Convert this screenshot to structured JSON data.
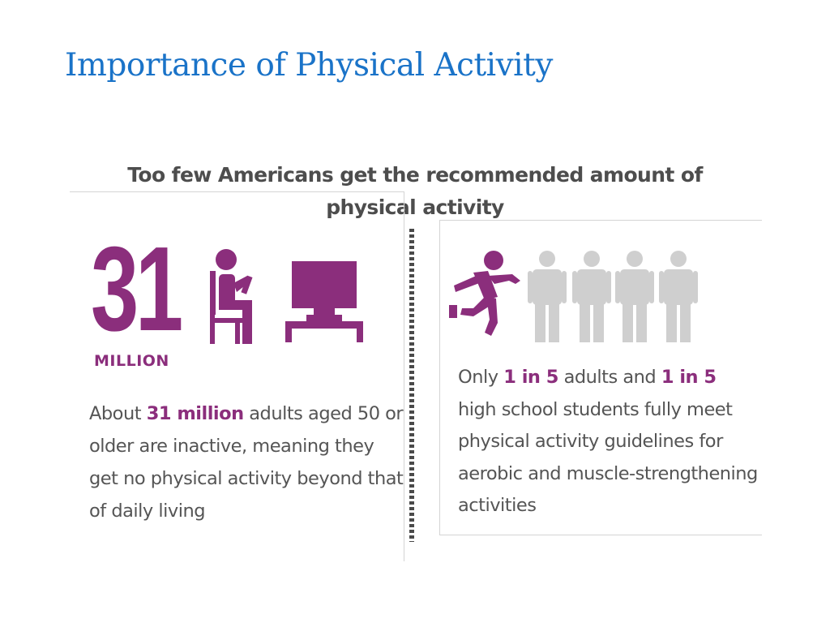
{
  "slide": {
    "title": "Importance of Physical Activity"
  },
  "panel": {
    "heading": "Too few Americans get the recommended amount of physical activity"
  },
  "left_stat": {
    "number": "31",
    "unit": "MILLION",
    "desc_before": "About ",
    "desc_highlight": "31 million",
    "desc_after": " adults aged 50 or older are inactive, meaning they get no physical activity beyond that of daily living"
  },
  "right_stat": {
    "desc_before": "Only ",
    "highlight_1": "1 in 5",
    "desc_middle": " adults and ",
    "highlight_2": "1 in 5",
    "desc_after": " high school students fully meet physical activity guidelines for aerobic and muscle-strengthening activities"
  },
  "icons": {
    "seated_person": "seated-person-icon",
    "television": "television-icon",
    "runner": "running-person-icon",
    "standing_person": "standing-person-icon"
  },
  "colors": {
    "title": "#1a73c8",
    "accent": "#8b2e7c",
    "heading": "#4d4d4d",
    "body_text": "#555555",
    "inactive_figure": "#cfcfcf"
  }
}
